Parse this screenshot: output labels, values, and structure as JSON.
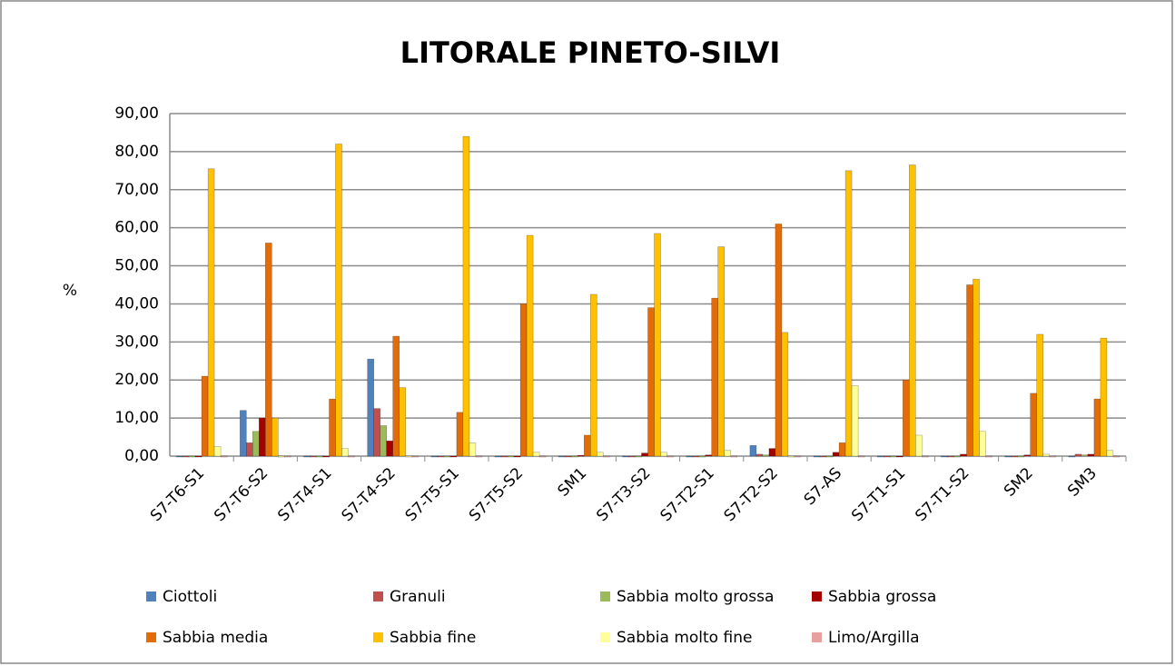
{
  "chart_data": {
    "type": "bar",
    "title": "LITORALE PINETO-SILVI",
    "y_label": "%",
    "categories": [
      "S7-T6-S1",
      "S7-T6-S2",
      "S7-T4-S1",
      "S7-T4-S2",
      "S7-T5-S1",
      "S7-T5-S2",
      "SM1",
      "S7-T3-S2",
      "S7-T2-S1",
      "S7-T2-S2",
      "S7-AS",
      "S7-T1-S1",
      "S7-T1-S2",
      "SM2",
      "SM3"
    ],
    "series": [
      {
        "name": "Ciottoli",
        "color": "#4f81bd",
        "values": [
          0,
          12,
          0,
          25.5,
          0,
          0,
          0,
          0,
          0,
          2.8,
          0,
          0,
          0,
          0,
          0
        ]
      },
      {
        "name": "Granuli",
        "color": "#c0504d",
        "values": [
          0,
          3.5,
          0,
          12.5,
          0,
          0,
          0,
          0,
          0,
          0.5,
          0,
          0,
          0,
          0,
          0.5
        ]
      },
      {
        "name": "Sabbia molto grossa",
        "color": "#9bbb59",
        "values": [
          0,
          6.5,
          0,
          8,
          0,
          0,
          0,
          0,
          0,
          0.3,
          0,
          0,
          0,
          0,
          0.3
        ]
      },
      {
        "name": "Sabbia grossa",
        "color": "#a50000",
        "values": [
          0,
          10,
          0,
          4,
          0,
          0,
          0.2,
          0.8,
          0.3,
          2,
          1,
          0,
          0.5,
          0.3,
          0.5
        ]
      },
      {
        "name": "Sabbia media",
        "color": "#e36c09",
        "values": [
          21,
          56,
          15,
          31.5,
          11.5,
          40,
          5.5,
          39,
          41.5,
          61,
          3.5,
          20,
          45,
          16.5,
          15
        ]
      },
      {
        "name": "Sabbia fine",
        "color": "#ffc000",
        "values": [
          75.5,
          10,
          82,
          18,
          84,
          58,
          42.5,
          58.5,
          55,
          32.5,
          75,
          76.5,
          46.5,
          32,
          31
        ]
      },
      {
        "name": "Sabbia molto fine",
        "color": "#ffff99",
        "values": [
          2.5,
          0,
          2,
          0,
          3.5,
          1,
          1,
          1,
          1.5,
          0,
          18.5,
          5.5,
          6.5,
          0.5,
          1.5
        ]
      },
      {
        "name": "Limo/Argilla",
        "color": "#e6a0a0",
        "values": [
          0,
          0,
          0,
          0,
          0,
          0,
          0,
          0,
          0,
          0,
          0,
          0,
          0,
          0,
          0
        ]
      }
    ],
    "ylim": [
      0,
      90
    ],
    "yticks": [
      {
        "value": 0,
        "label": "0,00"
      },
      {
        "value": 10,
        "label": "10,00"
      },
      {
        "value": 20,
        "label": "20,00"
      },
      {
        "value": 30,
        "label": "30,00"
      },
      {
        "value": 40,
        "label": "40,00"
      },
      {
        "value": 50,
        "label": "50,00"
      },
      {
        "value": 60,
        "label": "60,00"
      },
      {
        "value": 70,
        "label": "70,00"
      },
      {
        "value": 80,
        "label": "80,00"
      },
      {
        "value": 90,
        "label": "90,00"
      }
    ],
    "grid": true
  }
}
